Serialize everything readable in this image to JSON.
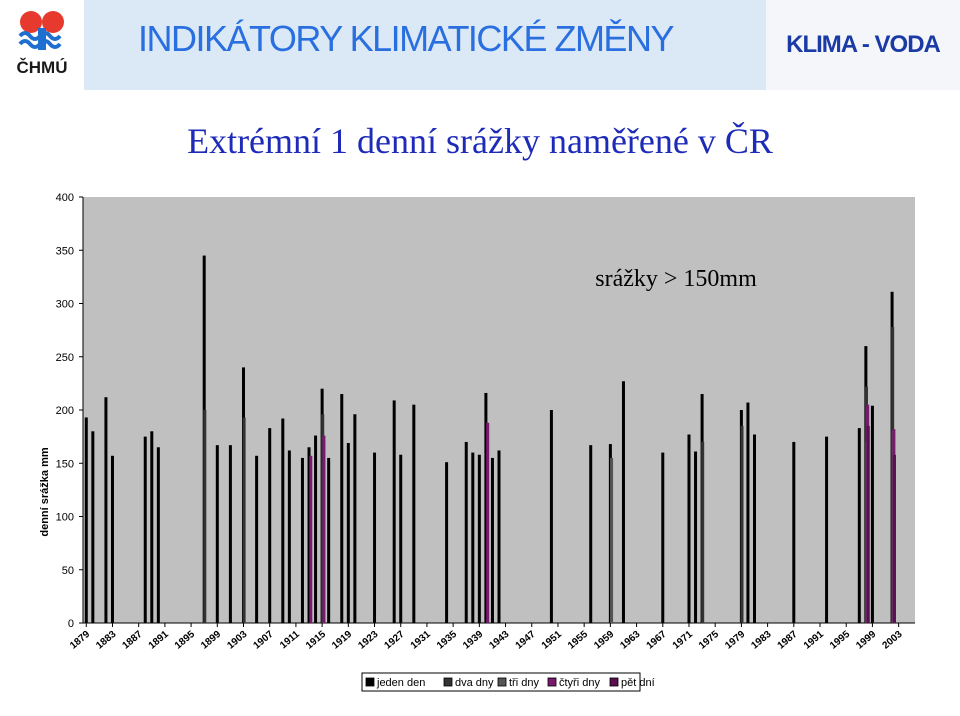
{
  "header": {
    "logo_text": "ČHMÚ",
    "title": "INDIKÁTORY KLIMATICKÉ ZMĚNY",
    "right_label": "KLIMA - VODA"
  },
  "slide_title": "Extrémní 1 denní srážky naměřené v ČR",
  "colors": {
    "header_band": "#dbe8f6",
    "header_title": "#2a6fe0",
    "header_right": "#1a3aa5",
    "slide_title": "#1e2bb8",
    "plot_background": "#c0c0c0"
  },
  "chart_data": {
    "type": "bar",
    "ylabel": "denní srážka mm",
    "annotation": "srážky > 150mm",
    "ylim": [
      0,
      400
    ],
    "yticks": [
      0,
      50,
      100,
      150,
      200,
      250,
      300,
      350,
      400
    ],
    "xlim": [
      1879,
      2005
    ],
    "xticks": [
      "1879",
      "1883",
      "1887",
      "1891",
      "1895",
      "1899",
      "1903",
      "1907",
      "1911",
      "1915",
      "1919",
      "1923",
      "1927",
      "1931",
      "1935",
      "1939",
      "1943",
      "1947",
      "1951",
      "1955",
      "1959",
      "1963",
      "1967",
      "1971",
      "1975",
      "1979",
      "1983",
      "1987",
      "1991",
      "1995",
      "1999",
      "2003"
    ],
    "grid": false,
    "legend_position": "bottom",
    "series": [
      {
        "name": "jeden den",
        "color": "#000000",
        "points": [
          [
            1879,
            193
          ],
          [
            1880,
            180
          ],
          [
            1882,
            212
          ],
          [
            1883,
            157
          ],
          [
            1888,
            175
          ],
          [
            1889,
            180
          ],
          [
            1890,
            165
          ],
          [
            1897,
            345
          ],
          [
            1899,
            167
          ],
          [
            1901,
            167
          ],
          [
            1903,
            240
          ],
          [
            1905,
            157
          ],
          [
            1907,
            183
          ],
          [
            1909,
            192
          ],
          [
            1910,
            162
          ],
          [
            1912,
            155
          ],
          [
            1913,
            165
          ],
          [
            1914,
            176
          ],
          [
            1915,
            220
          ],
          [
            1916,
            155
          ],
          [
            1918,
            215
          ],
          [
            1919,
            169
          ],
          [
            1920,
            196
          ],
          [
            1923,
            160
          ],
          [
            1926,
            209
          ],
          [
            1927,
            158
          ],
          [
            1929,
            205
          ],
          [
            1934,
            151
          ],
          [
            1937,
            170
          ],
          [
            1938,
            160
          ],
          [
            1939,
            158
          ],
          [
            1940,
            216
          ],
          [
            1941,
            155
          ],
          [
            1942,
            162
          ],
          [
            1950,
            200
          ],
          [
            1956,
            167
          ],
          [
            1959,
            168
          ],
          [
            1961,
            227
          ],
          [
            1967,
            160
          ],
          [
            1971,
            177
          ],
          [
            1972,
            161
          ],
          [
            1973,
            215
          ],
          [
            1979,
            200
          ],
          [
            1980,
            207
          ],
          [
            1981,
            177
          ],
          [
            1987,
            170
          ],
          [
            1992,
            175
          ],
          [
            1997,
            183
          ],
          [
            1998,
            260
          ],
          [
            1999,
            204
          ],
          [
            2002,
            311
          ]
        ]
      },
      {
        "name": "dva dny",
        "color": "#333333",
        "points": [
          [
            1897,
            200
          ],
          [
            1903,
            193
          ],
          [
            1915,
            196
          ],
          [
            1973,
            170
          ],
          [
            1979,
            185
          ],
          [
            1998,
            222
          ],
          [
            2002,
            278
          ]
        ]
      },
      {
        "name": "tři dny",
        "color": "#555555",
        "points": [
          [
            1959,
            155
          ],
          [
            1998,
            170
          ],
          [
            2002,
            180
          ]
        ]
      },
      {
        "name": "čtyři dny",
        "color": "#7a1a6e",
        "points": [
          [
            1913,
            157
          ],
          [
            1915,
            176
          ],
          [
            1940,
            188
          ],
          [
            1998,
            205
          ],
          [
            2002,
            182
          ]
        ]
      },
      {
        "name": "pět dní",
        "color": "#5a0f50",
        "points": [
          [
            1998,
            185
          ],
          [
            2002,
            158
          ]
        ]
      }
    ]
  }
}
